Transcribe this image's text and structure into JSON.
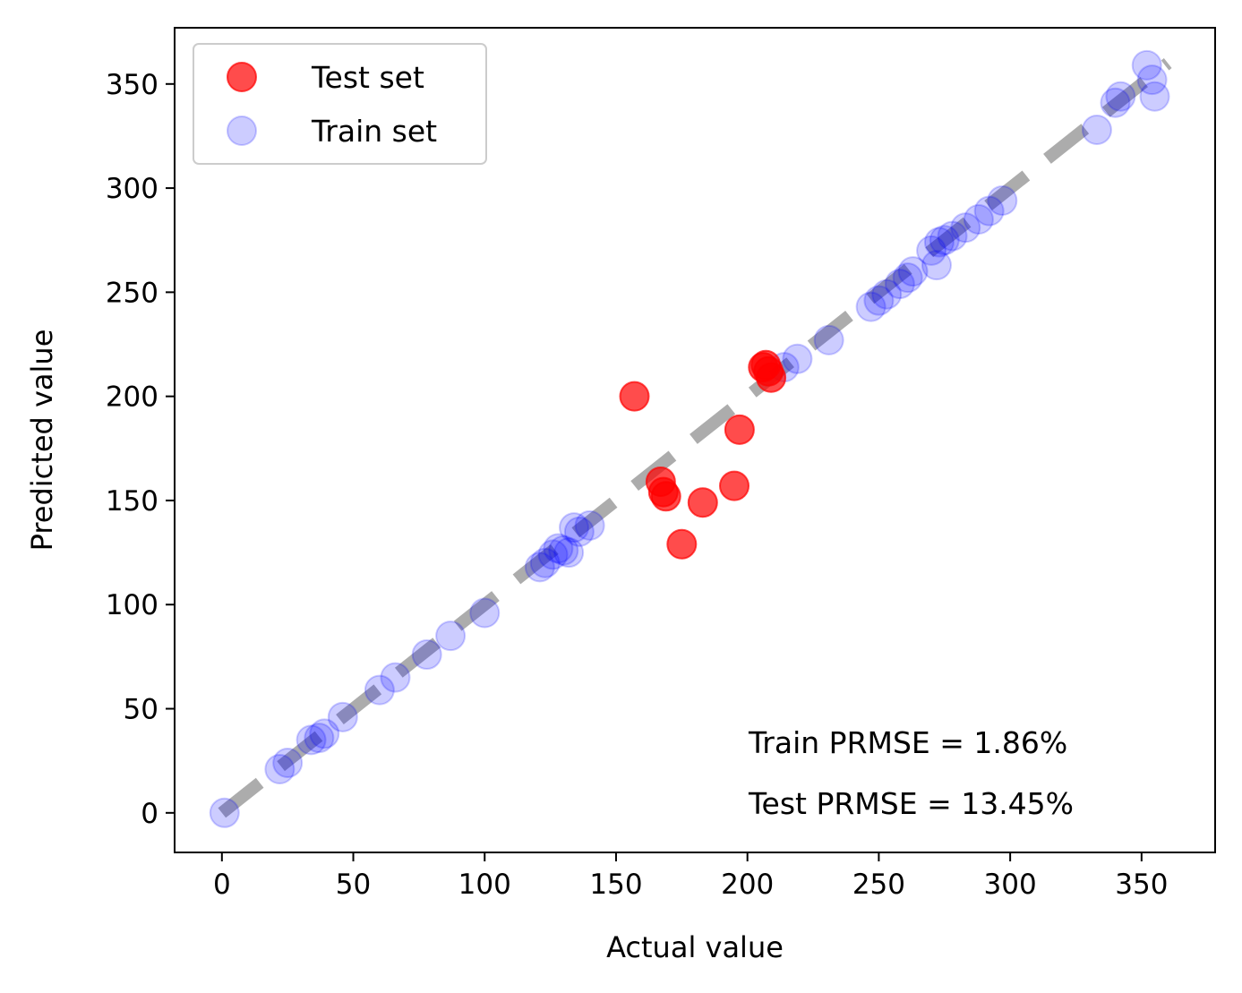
{
  "chart_data": {
    "type": "scatter",
    "xlabel": "Actual value",
    "ylabel": "Predicted value",
    "xlim": [
      -18,
      378
    ],
    "ylim": [
      -19,
      377
    ],
    "x_ticks": [
      0,
      50,
      100,
      150,
      200,
      250,
      300,
      350
    ],
    "y_ticks": [
      0,
      50,
      100,
      150,
      200,
      250,
      300,
      350
    ],
    "x_tick_labels": [
      "0",
      "50",
      "100",
      "150",
      "200",
      "250",
      "300",
      "350"
    ],
    "y_tick_labels": [
      "0",
      "50",
      "100",
      "150",
      "200",
      "250",
      "300",
      "350"
    ],
    "grid": false,
    "legend_position": "top-left",
    "reference_line": {
      "x": [
        0,
        360
      ],
      "y": [
        0,
        360
      ],
      "style": "dashed",
      "color": "#808080"
    },
    "series": [
      {
        "name": "Test set",
        "color": "#ff0000",
        "opacity": 0.7,
        "points": [
          [
            157,
            200
          ],
          [
            167,
            159
          ],
          [
            168,
            154
          ],
          [
            169,
            152
          ],
          [
            175,
            129
          ],
          [
            183,
            149
          ],
          [
            195,
            157
          ],
          [
            197,
            184
          ],
          [
            206,
            214
          ],
          [
            207,
            215
          ],
          [
            208,
            212
          ],
          [
            209,
            209
          ]
        ]
      },
      {
        "name": "Train set",
        "color": "#0000ff",
        "opacity": 0.2,
        "points": [
          [
            1,
            0
          ],
          [
            22,
            21
          ],
          [
            25,
            24
          ],
          [
            34,
            35
          ],
          [
            37,
            36
          ],
          [
            39,
            38
          ],
          [
            46,
            46
          ],
          [
            60,
            59
          ],
          [
            66,
            65
          ],
          [
            78,
            76
          ],
          [
            87,
            85
          ],
          [
            100,
            96
          ],
          [
            121,
            118
          ],
          [
            123,
            120
          ],
          [
            126,
            124
          ],
          [
            128,
            127
          ],
          [
            130,
            126
          ],
          [
            132,
            125
          ],
          [
            134,
            137
          ],
          [
            136,
            135
          ],
          [
            140,
            138
          ],
          [
            214,
            214
          ],
          [
            219,
            218
          ],
          [
            231,
            227
          ],
          [
            247,
            243
          ],
          [
            250,
            246
          ],
          [
            253,
            249
          ],
          [
            258,
            254
          ],
          [
            261,
            257
          ],
          [
            263,
            260
          ],
          [
            270,
            270
          ],
          [
            272,
            263
          ],
          [
            273,
            274
          ],
          [
            275,
            275
          ],
          [
            278,
            277
          ],
          [
            283,
            281
          ],
          [
            288,
            285
          ],
          [
            292,
            289
          ],
          [
            297,
            294
          ],
          [
            333,
            328
          ],
          [
            340,
            341
          ],
          [
            342,
            344
          ],
          [
            352,
            359
          ],
          [
            354,
            352
          ],
          [
            355,
            344
          ]
        ]
      }
    ],
    "annotations": [
      "Train PRMSE = 1.86%",
      "Test PRMSE = 13.45%"
    ]
  }
}
